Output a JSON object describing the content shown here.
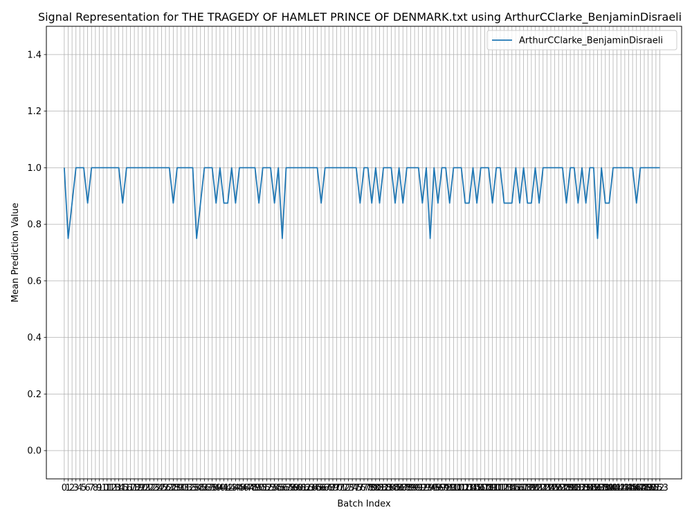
{
  "chart_data": {
    "type": "line",
    "title": "Signal Representation for THE TRAGEDY OF HAMLET PRINCE OF DENMARK.txt using ArthurCClarke_BenjaminDisraeli",
    "xlabel": "Batch Index",
    "ylabel": "Mean Prediction Value",
    "xlim": [
      -4.6,
      158.6
    ],
    "ylim": [
      -0.1,
      1.5
    ],
    "yticks": [
      0.0,
      0.2,
      0.4,
      0.6,
      0.8,
      1.0,
      1.2,
      1.4
    ],
    "ytick_labels": [
      "0.0",
      "0.2",
      "0.4",
      "0.6",
      "0.8",
      "1.0",
      "1.2",
      "1.4"
    ],
    "grid": true,
    "legend": "top-right",
    "series": [
      {
        "name": "ArthurCClarke_BenjaminDisraeli",
        "color": "#1f77b4",
        "x": [
          0,
          1,
          2,
          3,
          4,
          5,
          6,
          7,
          8,
          9,
          10,
          11,
          12,
          13,
          14,
          15,
          16,
          17,
          18,
          19,
          20,
          21,
          22,
          23,
          24,
          25,
          26,
          27,
          28,
          29,
          30,
          31,
          32,
          33,
          34,
          35,
          36,
          37,
          38,
          39,
          40,
          41,
          42,
          43,
          44,
          45,
          46,
          47,
          48,
          49,
          50,
          51,
          52,
          53,
          54,
          55,
          56,
          57,
          58,
          59,
          60,
          61,
          62,
          63,
          64,
          65,
          66,
          67,
          68,
          69,
          70,
          71,
          72,
          73,
          74,
          75,
          76,
          77,
          78,
          79,
          80,
          81,
          82,
          83,
          84,
          85,
          86,
          87,
          88,
          89,
          90,
          91,
          92,
          93,
          94,
          95,
          96,
          97,
          98,
          99,
          100,
          101,
          102,
          103,
          104,
          105,
          106,
          107,
          108,
          109,
          110,
          111,
          112,
          113,
          114,
          115,
          116,
          117,
          118,
          119,
          120,
          121,
          122,
          123,
          124,
          125,
          126,
          127,
          128,
          129,
          130,
          131,
          132,
          133,
          134,
          135,
          136,
          137,
          138,
          139,
          140,
          141,
          142,
          143,
          144,
          145,
          146,
          147,
          148,
          149,
          150,
          151,
          152,
          153
        ],
        "values": [
          1.0,
          0.75,
          0.875,
          1.0,
          1.0,
          1.0,
          0.875,
          1.0,
          1.0,
          1.0,
          1.0,
          1.0,
          1.0,
          1.0,
          1.0,
          0.875,
          1.0,
          1.0,
          1.0,
          1.0,
          1.0,
          1.0,
          1.0,
          1.0,
          1.0,
          1.0,
          1.0,
          1.0,
          0.875,
          1.0,
          1.0,
          1.0,
          1.0,
          1.0,
          0.75,
          0.875,
          1.0,
          1.0,
          1.0,
          0.875,
          1.0,
          0.875,
          0.875,
          1.0,
          0.875,
          1.0,
          1.0,
          1.0,
          1.0,
          1.0,
          0.875,
          1.0,
          1.0,
          1.0,
          0.875,
          1.0,
          0.75,
          1.0,
          1.0,
          1.0,
          1.0,
          1.0,
          1.0,
          1.0,
          1.0,
          1.0,
          0.875,
          1.0,
          1.0,
          1.0,
          1.0,
          1.0,
          1.0,
          1.0,
          1.0,
          1.0,
          0.875,
          1.0,
          1.0,
          0.875,
          1.0,
          0.875,
          1.0,
          1.0,
          1.0,
          0.875,
          1.0,
          0.875,
          1.0,
          1.0,
          1.0,
          1.0,
          0.875,
          1.0,
          0.75,
          1.0,
          0.875,
          1.0,
          1.0,
          0.875,
          1.0,
          1.0,
          1.0,
          0.875,
          0.875,
          1.0,
          0.875,
          1.0,
          1.0,
          1.0,
          0.875,
          1.0,
          1.0,
          0.875,
          0.875,
          0.875,
          1.0,
          0.875,
          1.0,
          0.875,
          0.875,
          1.0,
          0.875,
          1.0,
          1.0,
          1.0,
          1.0,
          1.0,
          1.0,
          0.875,
          1.0,
          1.0,
          0.875,
          1.0,
          0.875,
          1.0,
          1.0,
          0.75,
          1.0,
          0.875,
          0.875,
          1.0,
          1.0,
          1.0,
          1.0,
          1.0,
          1.0,
          0.875,
          1.0,
          1.0,
          1.0,
          1.0,
          1.0,
          1.0
        ]
      }
    ]
  }
}
